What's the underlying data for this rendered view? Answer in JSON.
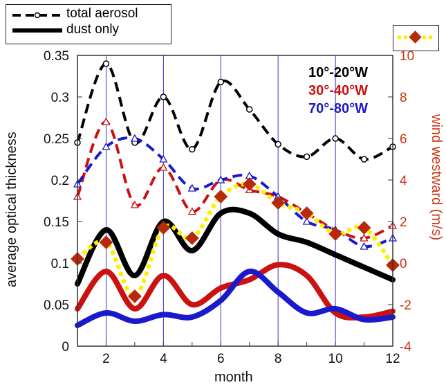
{
  "chart_data": {
    "type": "line",
    "title": "",
    "xlabel": "month",
    "ylabel": "average optical thickness",
    "y2label": "wind westward (m/s)",
    "xlim": [
      1,
      12
    ],
    "ylim": [
      0,
      0.35
    ],
    "y2lim": [
      -4,
      10
    ],
    "x_ticks": [
      2,
      4,
      6,
      8,
      10,
      12
    ],
    "y_ticks": [
      "0",
      "0.05",
      "0.1",
      "0.15",
      "0.2",
      "0.25",
      "0.3",
      "0.35"
    ],
    "y2_ticks": [
      "-4",
      "-2",
      "0",
      "2",
      "4",
      "6",
      "8",
      "10"
    ],
    "grid": "vertical lines at even months",
    "legend": {
      "entries": [
        {
          "label": "total aerosol",
          "style": "dashed"
        },
        {
          "label": "dust only",
          "style": "solid"
        }
      ],
      "placement": "top-left"
    },
    "regions": [
      {
        "label": "10°-20°W",
        "color": "#000000"
      },
      {
        "label": "30°-40°W",
        "color": "#cc1111"
      },
      {
        "label": "70°-80°W",
        "color": "#1a1acc"
      }
    ],
    "x": [
      1,
      2,
      3,
      4,
      5,
      6,
      7,
      8,
      9,
      10,
      11,
      12
    ],
    "series": [
      {
        "region": "10°-20°W",
        "kind": "total aerosol",
        "color": "#000000",
        "axis": "left",
        "values": [
          0.245,
          0.34,
          0.245,
          0.3,
          0.237,
          0.318,
          0.285,
          0.243,
          0.228,
          0.25,
          0.225,
          0.24
        ]
      },
      {
        "region": "10°-20°W",
        "kind": "dust only",
        "color": "#000000",
        "axis": "left",
        "values": [
          0.075,
          0.14,
          0.085,
          0.15,
          0.115,
          0.16,
          0.16,
          0.135,
          0.125,
          0.11,
          0.095,
          0.08
        ]
      },
      {
        "region": "30°-40°W",
        "kind": "total aerosol",
        "color": "#cc1111",
        "axis": "left",
        "values": [
          0.18,
          0.27,
          0.17,
          0.215,
          0.162,
          0.2,
          0.188,
          0.18,
          0.16,
          0.14,
          0.13,
          0.145
        ]
      },
      {
        "region": "30°-40°W",
        "kind": "dust only",
        "color": "#cc1111",
        "axis": "left",
        "values": [
          0.045,
          0.09,
          0.045,
          0.085,
          0.05,
          0.07,
          0.08,
          0.098,
          0.085,
          0.04,
          0.035,
          0.042
        ]
      },
      {
        "region": "70°-80°W",
        "kind": "total aerosol",
        "color": "#1a1acc",
        "axis": "left",
        "values": [
          0.195,
          0.24,
          0.25,
          0.225,
          0.19,
          0.2,
          0.205,
          0.18,
          0.15,
          0.14,
          0.12,
          0.13
        ]
      },
      {
        "region": "70°-80°W",
        "kind": "dust only",
        "color": "#1a1acc",
        "axis": "left",
        "values": [
          0.025,
          0.04,
          0.03,
          0.038,
          0.035,
          0.055,
          0.09,
          0.065,
          0.04,
          0.045,
          0.032,
          0.035
        ]
      },
      {
        "name": "wind westward",
        "kind": "wind",
        "color": "#b8290a",
        "line_color": "#ffee00",
        "axis": "right",
        "values": [
          0.2,
          1.0,
          -1.6,
          1.7,
          1.2,
          3.2,
          3.8,
          2.9,
          2.4,
          1.4,
          1.7,
          -0.1
        ]
      }
    ]
  }
}
